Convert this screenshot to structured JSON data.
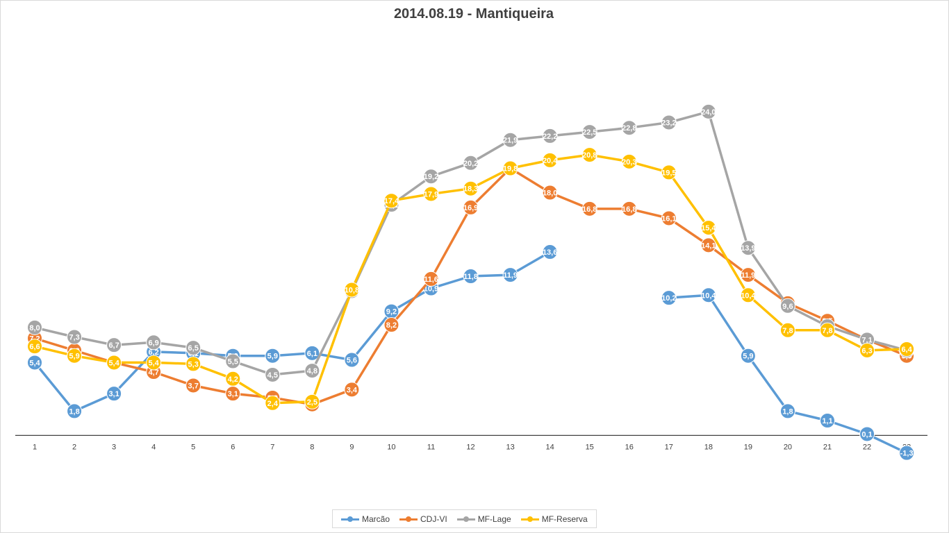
{
  "chart_data": {
    "type": "line",
    "title": "2014.08.19 - Mantiqueira",
    "xlabel": "",
    "ylabel": "",
    "categories": [
      "1",
      "2",
      "3",
      "4",
      "5",
      "6",
      "7",
      "8",
      "9",
      "10",
      "11",
      "12",
      "13",
      "14",
      "15",
      "16",
      "17",
      "18",
      "19",
      "20",
      "21",
      "22",
      "23"
    ],
    "ylim": [
      -2.5,
      29.5
    ],
    "grid": false,
    "legend_position": "bottom",
    "series": [
      {
        "name": "Marcão",
        "color": "#5B9BD5",
        "values": [
          5.4,
          1.8,
          3.1,
          6.2,
          6.1,
          5.9,
          5.9,
          6.1,
          5.6,
          9.2,
          10.9,
          11.8,
          11.9,
          13.6,
          null,
          null,
          10.2,
          10.4,
          5.9,
          1.8,
          1.1,
          0.1,
          -1.3
        ]
      },
      {
        "name": "CDJ-VI",
        "color": "#ED7D31",
        "values": [
          7.2,
          6.3,
          5.4,
          4.7,
          3.7,
          3.1,
          2.8,
          2.3,
          3.4,
          8.2,
          11.6,
          16.9,
          19.8,
          18.0,
          16.8,
          16.8,
          16.1,
          14.1,
          11.9,
          9.8,
          8.5,
          7.1,
          5.9
        ]
      },
      {
        "name": "MF-Lage",
        "color": "#A5A5A5",
        "values": [
          8.0,
          7.3,
          6.7,
          6.9,
          6.5,
          5.5,
          4.5,
          4.8,
          10.7,
          17.1,
          19.2,
          20.2,
          21.9,
          22.2,
          22.5,
          22.8,
          23.2,
          24.0,
          13.9,
          9.6,
          8.1,
          7.1,
          6.3
        ]
      },
      {
        "name": "MF-Reserva",
        "color": "#FFC000",
        "values": [
          6.6,
          5.9,
          5.4,
          5.4,
          5.3,
          4.2,
          2.4,
          2.5,
          10.8,
          17.4,
          17.9,
          18.3,
          19.8,
          20.4,
          20.8,
          20.3,
          19.5,
          15.4,
          10.4,
          7.8,
          7.8,
          6.3,
          6.4
        ]
      }
    ]
  }
}
